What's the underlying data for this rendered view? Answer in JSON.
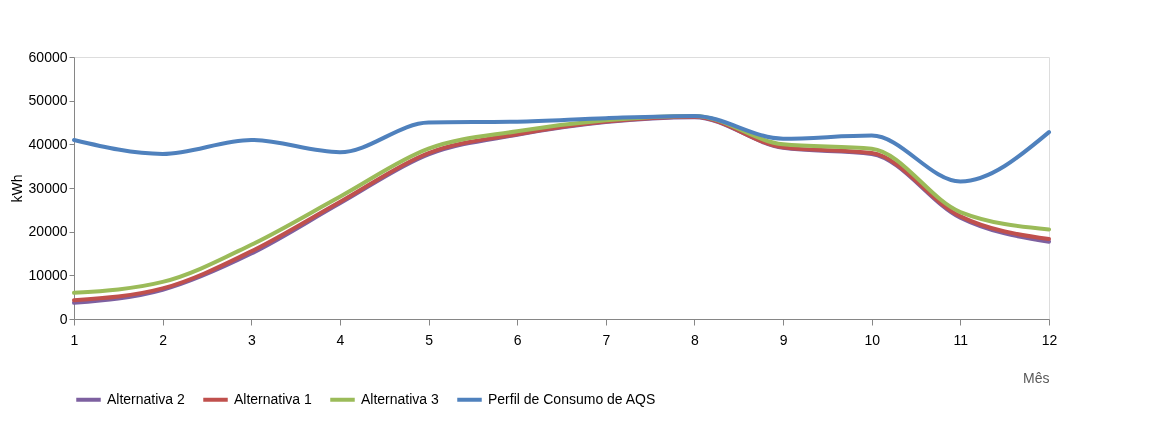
{
  "chart_data": {
    "type": "line",
    "xlabel": "Mês",
    "ylabel": "kWh",
    "x": [
      1,
      2,
      3,
      4,
      5,
      6,
      7,
      8,
      9,
      10,
      11,
      12
    ],
    "xlim": [
      1,
      12
    ],
    "xticks": [
      1,
      2,
      3,
      4,
      5,
      6,
      7,
      8,
      9,
      10,
      11,
      12
    ],
    "ylim": [
      0,
      60000
    ],
    "yticks": [
      0,
      10000,
      20000,
      30000,
      40000,
      50000,
      60000
    ],
    "grid": false,
    "legend": "bottom",
    "marker": "none",
    "line_style": "solid",
    "series": [
      {
        "name": "Alternativa 2",
        "color": "#7d60a0",
        "values": [
          3700,
          6700,
          15000,
          26500,
          37700,
          42200,
          45100,
          46200,
          39200,
          37800,
          23200,
          17700
        ]
      },
      {
        "name": "Alternativa 1",
        "color": "#c0504d",
        "values": [
          4300,
          7000,
          15500,
          26800,
          38000,
          42300,
          45200,
          46300,
          39300,
          38000,
          23500,
          18300
        ]
      },
      {
        "name": "Alternativa 3",
        "color": "#9bbb59",
        "values": [
          6000,
          8500,
          17000,
          28000,
          39000,
          43000,
          45500,
          46500,
          40000,
          39000,
          24500,
          20500
        ]
      },
      {
        "name": "Perfil de Consumo de AQS",
        "color": "#4f81bd",
        "values": [
          41000,
          37800,
          41000,
          38200,
          45000,
          45200,
          46000,
          46500,
          41300,
          42000,
          31500,
          42800
        ]
      }
    ]
  }
}
